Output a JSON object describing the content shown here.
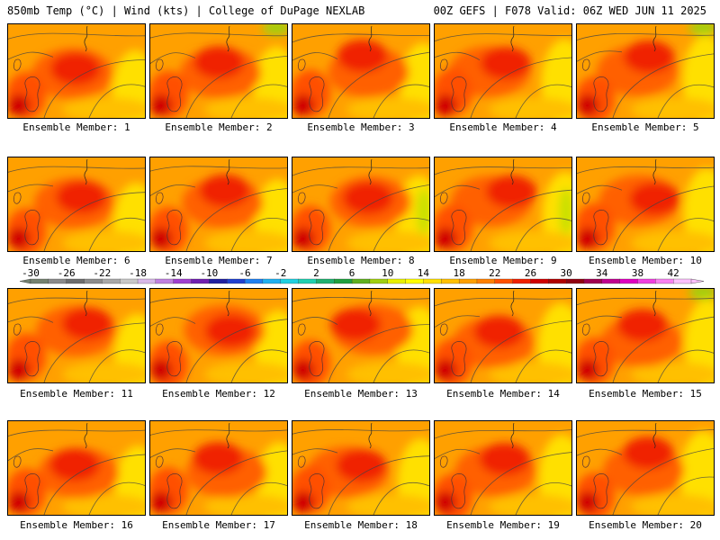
{
  "header": {
    "left": "850mb Temp (°C) | Wind (kts) | College of DuPage NEXLAB",
    "right": "00Z GEFS | F078 Valid: 06Z WED JUN 11 2025"
  },
  "panels": [
    {
      "label": "Ensemble Member: 1"
    },
    {
      "label": "Ensemble Member: 2"
    },
    {
      "label": "Ensemble Member: 3"
    },
    {
      "label": "Ensemble Member: 4"
    },
    {
      "label": "Ensemble Member: 5"
    },
    {
      "label": "Ensemble Member: 6"
    },
    {
      "label": "Ensemble Member: 7"
    },
    {
      "label": "Ensemble Member: 8"
    },
    {
      "label": "Ensemble Member: 9"
    },
    {
      "label": "Ensemble Member: 10"
    },
    {
      "label": "Ensemble Member: 11"
    },
    {
      "label": "Ensemble Member: 12"
    },
    {
      "label": "Ensemble Member: 13"
    },
    {
      "label": "Ensemble Member: 14"
    },
    {
      "label": "Ensemble Member: 15"
    },
    {
      "label": "Ensemble Member: 16"
    },
    {
      "label": "Ensemble Member: 17"
    },
    {
      "label": "Ensemble Member: 18"
    },
    {
      "label": "Ensemble Member: 19"
    },
    {
      "label": "Ensemble Member: 20"
    }
  ],
  "colorbar": {
    "labels": [
      "-30",
      "-26",
      "-22",
      "-18",
      "-14",
      "-10",
      "-6",
      "-2",
      "2",
      "6",
      "10",
      "14",
      "18",
      "22",
      "26",
      "30",
      "34",
      "38",
      "42"
    ],
    "colors": [
      "#74816f",
      "#8a8a8a",
      "#6d6d6d",
      "#8c8c8c",
      "#a8a8a8",
      "#c8c8c8",
      "#d8b8e8",
      "#c080e0",
      "#a040d0",
      "#7020b0",
      "#2020a0",
      "#2040d0",
      "#2080f0",
      "#20b0f0",
      "#20d0e0",
      "#20d0b0",
      "#20b070",
      "#20a040",
      "#60b020",
      "#a0d010",
      "#e8f000",
      "#ffff00",
      "#ffe000",
      "#ffc000",
      "#ffa000",
      "#ff8000",
      "#ff5000",
      "#f02000",
      "#d00000",
      "#b00000",
      "#900010",
      "#a00050",
      "#c00090",
      "#e000c0",
      "#f040e0",
      "#f880f0",
      "#fcc0fc"
    ]
  }
}
